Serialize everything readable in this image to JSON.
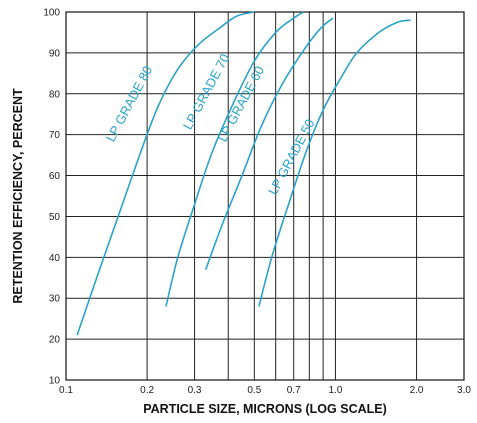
{
  "chart_data": {
    "type": "line",
    "title": "",
    "xlabel": "PARTICLE SIZE, MICRONS (LOG SCALE)",
    "ylabel": "RETENTION EFFICIENCY, PERCENT",
    "x_scale": "log",
    "xlim": [
      0.1,
      3.0
    ],
    "ylim": [
      10,
      100
    ],
    "grid": true,
    "x_ticks": [
      0.1,
      0.2,
      0.3,
      0.5,
      0.7,
      1.0,
      2.0,
      3.0
    ],
    "x_tick_labels": [
      "0.1",
      "0.2",
      "0.3",
      "0.5",
      "0.7",
      "1.0",
      "2.0",
      "3.0"
    ],
    "x_grid": [
      0.1,
      0.2,
      0.3,
      0.4,
      0.5,
      0.6,
      0.7,
      0.8,
      0.9,
      1.0,
      2.0,
      3.0
    ],
    "y_ticks": [
      10,
      20,
      30,
      40,
      50,
      60,
      70,
      80,
      90,
      100
    ],
    "y_tick_labels": [
      "10",
      "20",
      "30",
      "40",
      "50",
      "60",
      "70",
      "80",
      "90",
      "100"
    ],
    "line_color": "#2aa3c9",
    "series": [
      {
        "name": "LP GRADE 80",
        "points": [
          [
            0.11,
            21
          ],
          [
            0.13,
            35
          ],
          [
            0.16,
            52
          ],
          [
            0.19,
            66
          ],
          [
            0.22,
            77
          ],
          [
            0.26,
            86
          ],
          [
            0.31,
            92
          ],
          [
            0.37,
            96
          ],
          [
            0.43,
            99
          ],
          [
            0.5,
            100
          ]
        ]
      },
      {
        "name": "LP GRADE 70",
        "points": [
          [
            0.235,
            28
          ],
          [
            0.26,
            40
          ],
          [
            0.3,
            53
          ],
          [
            0.35,
            66
          ],
          [
            0.42,
            78
          ],
          [
            0.5,
            88
          ],
          [
            0.6,
            95
          ],
          [
            0.7,
            98.5
          ],
          [
            0.76,
            100
          ]
        ]
      },
      {
        "name": "LP GRADE 60",
        "points": [
          [
            0.33,
            37
          ],
          [
            0.38,
            48
          ],
          [
            0.45,
            60
          ],
          [
            0.53,
            72
          ],
          [
            0.63,
            82
          ],
          [
            0.75,
            90
          ],
          [
            0.88,
            96
          ],
          [
            0.98,
            98.5
          ]
        ]
      },
      {
        "name": "LP GRADE 50",
        "points": [
          [
            0.52,
            28
          ],
          [
            0.58,
            40
          ],
          [
            0.67,
            53
          ],
          [
            0.78,
            66
          ],
          [
            0.9,
            76
          ],
          [
            1.05,
            84
          ],
          [
            1.2,
            90
          ],
          [
            1.45,
            95
          ],
          [
            1.7,
            97.5
          ],
          [
            1.9,
            98
          ]
        ]
      }
    ]
  }
}
